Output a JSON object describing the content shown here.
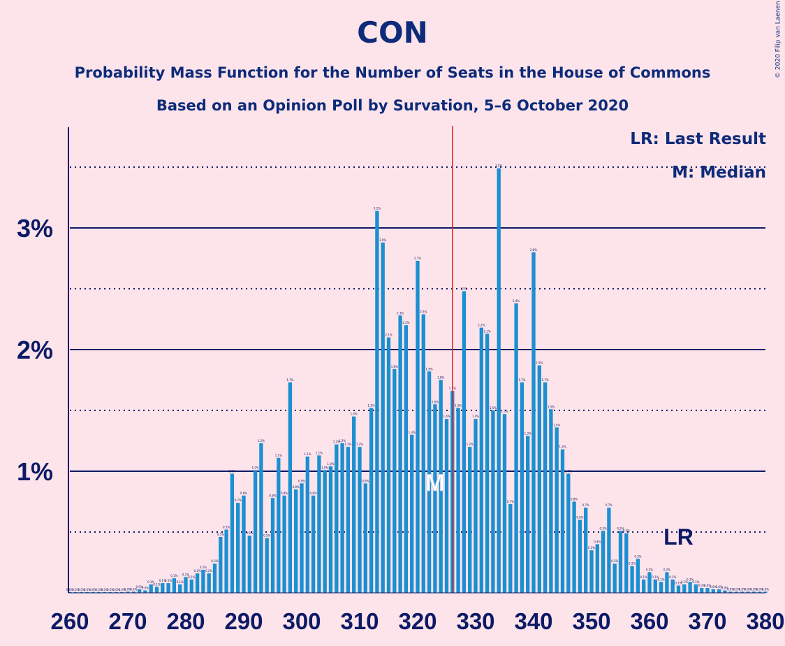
{
  "title": "CON",
  "subtitle1": "Probability Mass Function for the Number of Seats in the House of Commons",
  "subtitle2": "Based on an Opinion Poll by Survation, 5–6 October 2020",
  "copyright": "© 2020 Filip van Laenen",
  "legend": {
    "lr": "LR: Last Result",
    "m": "M: Median"
  },
  "colors": {
    "bar": "#1b8fd1",
    "axis": "#0d1a66",
    "last_result_line": "#e0202a",
    "background": "#fde4ea"
  },
  "chart_data": {
    "type": "bar",
    "xlim": [
      260,
      380
    ],
    "ylim": [
      0,
      3.8
    ],
    "y_unit": "%",
    "x_ticks": [
      260,
      270,
      280,
      290,
      300,
      310,
      320,
      330,
      340,
      350,
      360,
      370,
      380
    ],
    "y_ticks": [
      "1%",
      "2%",
      "3%"
    ],
    "y_tick_values": [
      1,
      2,
      3
    ],
    "dotted_gridlines": [
      0.5,
      1.5,
      2.5,
      3.5
    ],
    "median_seat": 323,
    "median_label": "M",
    "last_result_seat": 365,
    "last_result_label": "LR",
    "majority_line_seat": 326,
    "x": [
      260,
      261,
      262,
      263,
      264,
      265,
      266,
      267,
      268,
      269,
      270,
      271,
      272,
      273,
      274,
      275,
      276,
      277,
      278,
      279,
      280,
      281,
      282,
      283,
      284,
      285,
      286,
      287,
      288,
      289,
      290,
      291,
      292,
      293,
      294,
      295,
      296,
      297,
      298,
      299,
      300,
      301,
      302,
      303,
      304,
      305,
      306,
      307,
      308,
      309,
      310,
      311,
      312,
      313,
      314,
      315,
      316,
      317,
      318,
      319,
      320,
      321,
      322,
      323,
      324,
      325,
      326,
      327,
      328,
      329,
      330,
      331,
      332,
      333,
      334,
      335,
      336,
      337,
      338,
      339,
      340,
      341,
      342,
      343,
      344,
      345,
      346,
      347,
      348,
      349,
      350,
      351,
      352,
      353,
      354,
      355,
      356,
      357,
      358,
      359,
      360,
      361,
      362,
      363,
      364,
      365,
      366,
      367,
      368,
      369,
      370,
      371,
      372,
      373,
      374,
      375,
      376,
      377,
      378,
      379,
      380
    ],
    "values": [
      0,
      0,
      0,
      0,
      0,
      0,
      0,
      0,
      0,
      0,
      0.01,
      0.01,
      0.03,
      0.02,
      0.07,
      0.05,
      0.08,
      0.08,
      0.12,
      0.07,
      0.13,
      0.11,
      0.16,
      0.19,
      0.16,
      0.24,
      0.46,
      0.52,
      0.98,
      0.74,
      0.8,
      0.47,
      1.01,
      1.23,
      0.45,
      0.78,
      1.11,
      0.8,
      1.73,
      0.85,
      0.9,
      1.12,
      0.8,
      1.13,
      1.01,
      1.04,
      1.22,
      1.23,
      1.2,
      1.45,
      1.2,
      0.9,
      1.52,
      3.14,
      2.88,
      2.1,
      1.84,
      2.28,
      2.2,
      1.3,
      2.73,
      2.29,
      1.82,
      1.55,
      1.75,
      1.43,
      1.66,
      1.52,
      2.48,
      1.2,
      1.43,
      2.18,
      2.13,
      1.5,
      3.49,
      1.47,
      0.73,
      2.38,
      1.73,
      1.29,
      2.8,
      1.87,
      1.73,
      1.51,
      1.36,
      1.18,
      0.98,
      0.75,
      0.6,
      0.7,
      0.35,
      0.4,
      0.51,
      0.7,
      0.24,
      0.51,
      0.49,
      0.22,
      0.28,
      0.11,
      0.17,
      0.11,
      0.09,
      0.17,
      0.11,
      0.06,
      0.07,
      0.09,
      0.07,
      0.04,
      0.04,
      0.03,
      0.03,
      0.02,
      0.01,
      0.01,
      0.01,
      0.01,
      0.01,
      0.01,
      0.01
    ]
  }
}
